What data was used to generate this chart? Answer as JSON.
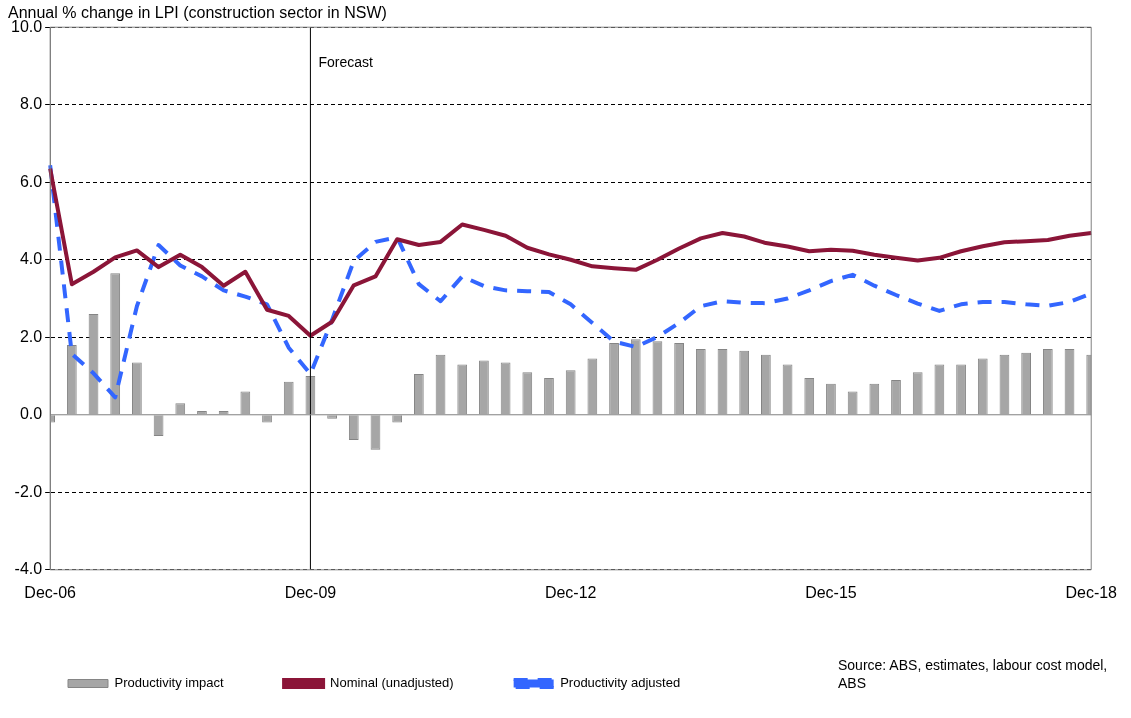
{
  "chart_data": {
    "type": "bar",
    "title": "Annual % change in LPI (construction sector in NSW)",
    "categories": [
      "Dec-06",
      null,
      null,
      null,
      null,
      null,
      null,
      null,
      null,
      null,
      null,
      null,
      "Dec-09",
      null,
      null,
      null,
      null,
      null,
      null,
      null,
      null,
      null,
      null,
      null,
      "Dec-12",
      null,
      null,
      null,
      null,
      null,
      null,
      null,
      null,
      null,
      null,
      null,
      "Dec-15",
      null,
      null,
      null,
      null,
      null,
      null,
      null,
      null,
      null,
      null,
      null,
      "Dec-18"
    ],
    "series": [
      {
        "name": "Productivity impact",
        "color": "#a6a6a6",
        "values": [
          -0.2,
          1.8,
          2.6,
          3.65,
          1.35,
          -0.55,
          0.3,
          0.1,
          0.1,
          0.6,
          -0.2,
          0.85,
          1.0,
          -0.1,
          -0.65,
          -0.9,
          -0.2,
          1.05,
          1.55,
          1.3,
          1.4,
          1.35,
          1.1,
          0.95,
          1.15,
          1.45,
          1.85,
          1.95,
          1.9,
          1.85,
          1.7,
          1.7,
          1.65,
          1.55,
          1.3,
          0.95,
          0.8,
          0.6,
          0.8,
          0.9,
          1.1,
          1.3,
          1.3,
          1.45,
          1.55,
          1.6,
          1.7,
          1.7,
          1.55
        ]
      },
      {
        "name": "Nominal (unadjusted)",
        "type": "line",
        "color": "#8b1538",
        "line_style": "solid",
        "values": [
          6.35,
          3.37,
          3.69,
          4.06,
          4.24,
          3.81,
          4.13,
          3.81,
          3.33,
          3.69,
          2.71,
          2.55,
          2.04,
          2.4,
          3.34,
          3.57,
          4.53,
          4.38,
          4.46,
          4.91,
          4.77,
          4.62,
          4.31,
          4.14,
          4.0,
          3.83,
          3.78,
          3.74,
          4.0,
          4.29,
          4.55,
          4.69,
          4.6,
          4.43,
          4.34,
          4.22,
          4.26,
          4.23,
          4.13,
          4.05,
          3.98,
          4.05,
          4.22,
          4.35,
          4.45,
          4.48,
          4.51,
          4.62,
          4.69
        ]
      },
      {
        "name": "Productivity adjusted",
        "type": "line",
        "color": "#3366ff",
        "line_style": "dashed",
        "values": [
          6.44,
          1.57,
          1.07,
          0.45,
          2.8,
          4.38,
          3.85,
          3.57,
          3.21,
          3.05,
          2.85,
          1.73,
          1.05,
          2.45,
          3.97,
          4.46,
          4.58,
          3.37,
          2.93,
          3.57,
          3.32,
          3.21,
          3.19,
          3.17,
          2.85,
          2.37,
          1.89,
          1.75,
          2.01,
          2.37,
          2.8,
          2.93,
          2.89,
          2.88,
          3.0,
          3.21,
          3.45,
          3.61,
          3.33,
          3.09,
          2.87,
          2.68,
          2.85,
          2.91,
          2.91,
          2.85,
          2.81,
          2.91,
          3.13
        ]
      }
    ],
    "ylim": [
      -4,
      10
    ],
    "yticks": [
      {
        "value": -4,
        "label": "-4.0"
      },
      {
        "value": -2,
        "label": "-2.0"
      },
      {
        "value": 0,
        "label": "0.0"
      },
      {
        "value": 2,
        "label": "2.0"
      },
      {
        "value": 4,
        "label": "4.0"
      },
      {
        "value": 6,
        "label": "6.0"
      },
      {
        "value": 8,
        "label": "8.0"
      },
      {
        "value": 10,
        "label": "10.0"
      }
    ],
    "grid": "y",
    "legend": "bottom",
    "marker": "none",
    "ref_lines": [
      {
        "axis": "x",
        "value": "Dec-09",
        "label": "Forecast"
      },
      {
        "axis": "y",
        "value": 0,
        "color": "#808080"
      }
    ],
    "annotations": [
      "Source: ABS, estimates, labour cost model, ABS"
    ]
  }
}
